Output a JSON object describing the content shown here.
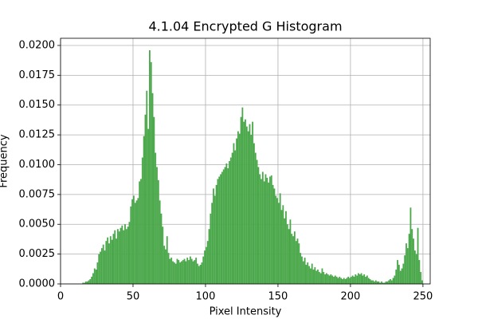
{
  "chart_data": {
    "type": "histogram",
    "title": "4.1.04 Encrypted G Histogram",
    "xlabel": "Pixel Intensity",
    "ylabel": "Frequency",
    "color": "#4aa84a",
    "grid": true,
    "xlim": [
      0,
      255
    ],
    "ylim": [
      0,
      0.0206
    ],
    "xticks": [
      0,
      50,
      100,
      150,
      200,
      250
    ],
    "yticks": [
      {
        "value": 0,
        "label": "0.0000"
      },
      {
        "value": 0.0025,
        "label": "0.0025"
      },
      {
        "value": 0.005,
        "label": "0.0050"
      },
      {
        "value": 0.0075,
        "label": "0.0075"
      },
      {
        "value": 0.01,
        "label": "0.0100"
      },
      {
        "value": 0.0125,
        "label": "0.0125"
      },
      {
        "value": 0.015,
        "label": "0.0150"
      },
      {
        "value": 0.0175,
        "label": "0.0175"
      },
      {
        "value": 0.02,
        "label": "0.0200"
      }
    ],
    "bins": [
      0,
      1,
      2,
      3,
      4,
      5,
      6,
      7,
      8,
      9,
      10,
      11,
      12,
      13,
      14,
      15,
      16,
      17,
      18,
      19,
      20,
      21,
      22,
      23,
      24,
      25,
      26,
      27,
      28,
      29,
      30,
      31,
      32,
      33,
      34,
      35,
      36,
      37,
      38,
      39,
      40,
      41,
      42,
      43,
      44,
      45,
      46,
      47,
      48,
      49,
      50,
      51,
      52,
      53,
      54,
      55,
      56,
      57,
      58,
      59,
      60,
      61,
      62,
      63,
      64,
      65,
      66,
      67,
      68,
      69,
      70,
      71,
      72,
      73,
      74,
      75,
      76,
      77,
      78,
      79,
      80,
      81,
      82,
      83,
      84,
      85,
      86,
      87,
      88,
      89,
      90,
      91,
      92,
      93,
      94,
      95,
      96,
      97,
      98,
      99,
      100,
      101,
      102,
      103,
      104,
      105,
      106,
      107,
      108,
      109,
      110,
      111,
      112,
      113,
      114,
      115,
      116,
      117,
      118,
      119,
      120,
      121,
      122,
      123,
      124,
      125,
      126,
      127,
      128,
      129,
      130,
      131,
      132,
      133,
      134,
      135,
      136,
      137,
      138,
      139,
      140,
      141,
      142,
      143,
      144,
      145,
      146,
      147,
      148,
      149,
      150,
      151,
      152,
      153,
      154,
      155,
      156,
      157,
      158,
      159,
      160,
      161,
      162,
      163,
      164,
      165,
      166,
      167,
      168,
      169,
      170,
      171,
      172,
      173,
      174,
      175,
      176,
      177,
      178,
      179,
      180,
      181,
      182,
      183,
      184,
      185,
      186,
      187,
      188,
      189,
      190,
      191,
      192,
      193,
      194,
      195,
      196,
      197,
      198,
      199,
      200,
      201,
      202,
      203,
      204,
      205,
      206,
      207,
      208,
      209,
      210,
      211,
      212,
      213,
      214,
      215,
      216,
      217,
      218,
      219,
      220,
      221,
      222,
      223,
      224,
      225,
      226,
      227,
      228,
      229,
      230,
      231,
      232,
      233,
      234,
      235,
      236,
      237,
      238,
      239,
      240,
      241,
      242,
      243,
      244,
      245,
      246,
      247,
      248,
      249,
      250,
      251,
      252,
      253,
      254,
      255
    ],
    "values": [
      0,
      0,
      0,
      0,
      0,
      0,
      0,
      0,
      0,
      0,
      0,
      0,
      0,
      0,
      0,
      0.0001,
      0.0001,
      0.0002,
      0.0002,
      0.0003,
      0.0004,
      0.0006,
      0.0009,
      0.0013,
      0.0012,
      0.0018,
      0.0025,
      0.0027,
      0.003,
      0.0033,
      0.0028,
      0.0036,
      0.0039,
      0.0034,
      0.004,
      0.0037,
      0.0042,
      0.0045,
      0.0038,
      0.0046,
      0.0044,
      0.0047,
      0.0049,
      0.0045,
      0.005,
      0.0046,
      0.0048,
      0.0052,
      0.0065,
      0.0071,
      0.0074,
      0.0068,
      0.007,
      0.0072,
      0.0086,
      0.0088,
      0.0106,
      0.0124,
      0.0142,
      0.0162,
      0.013,
      0.0196,
      0.0186,
      0.016,
      0.014,
      0.011,
      0.0098,
      0.0087,
      0.007,
      0.0059,
      0.0048,
      0.0032,
      0.0029,
      0.004,
      0.0026,
      0.0021,
      0.0022,
      0.0019,
      0.0018,
      0.0017,
      0.0021,
      0.002,
      0.0018,
      0.0019,
      0.002,
      0.0021,
      0.0019,
      0.0022,
      0.002,
      0.0023,
      0.0021,
      0.0019,
      0.002,
      0.0022,
      0.0017,
      0.0015,
      0.0016,
      0.0018,
      0.0023,
      0.0028,
      0.0031,
      0.0036,
      0.0046,
      0.0059,
      0.0068,
      0.008,
      0.0074,
      0.0083,
      0.0088,
      0.009,
      0.0092,
      0.0094,
      0.0096,
      0.0098,
      0.0101,
      0.0097,
      0.0103,
      0.0106,
      0.011,
      0.0118,
      0.0112,
      0.0122,
      0.0128,
      0.0126,
      0.014,
      0.0148,
      0.0136,
      0.0138,
      0.0132,
      0.0128,
      0.0134,
      0.0125,
      0.0136,
      0.0118,
      0.011,
      0.0104,
      0.0098,
      0.0092,
      0.0088,
      0.0094,
      0.0086,
      0.0092,
      0.0089,
      0.0085,
      0.009,
      0.0091,
      0.0083,
      0.008,
      0.0074,
      0.0072,
      0.0068,
      0.0076,
      0.0062,
      0.0066,
      0.0055,
      0.0061,
      0.005,
      0.0046,
      0.0054,
      0.0042,
      0.004,
      0.0044,
      0.0036,
      0.0038,
      0.0034,
      0.0026,
      0.0023,
      0.0019,
      0.0022,
      0.0016,
      0.0018,
      0.0015,
      0.0013,
      0.0017,
      0.0012,
      0.0014,
      0.0011,
      0.0012,
      0.001,
      0.0009,
      0.0013,
      0.001,
      0.0008,
      0.0009,
      0.0008,
      0.0007,
      0.0008,
      0.0007,
      0.0006,
      0.0007,
      0.0006,
      0.0005,
      0.0006,
      0.0005,
      0.0004,
      0.0005,
      0.0004,
      0.0005,
      0.0006,
      0.0005,
      0.0006,
      0.0007,
      0.0006,
      0.0008,
      0.0007,
      0.0009,
      0.0008,
      0.0009,
      0.0007,
      0.0008,
      0.0006,
      0.0007,
      0.0005,
      0.0004,
      0.0003,
      0.0003,
      0.0002,
      0.0003,
      0.0002,
      0.0002,
      0.0001,
      0.0002,
      0.0001,
      0.0001,
      0.0002,
      0.0002,
      0.0003,
      0.0004,
      0.0003,
      0.0005,
      0.0007,
      0.0012,
      0.002,
      0.0016,
      0.0011,
      0.0013,
      0.0017,
      0.0024,
      0.0034,
      0.003,
      0.0042,
      0.0064,
      0.0046,
      0.0038,
      0.0028,
      0.0025,
      0.0047,
      0.002,
      0.001,
      0.0003,
      0,
      0,
      0,
      0,
      0
    ]
  }
}
